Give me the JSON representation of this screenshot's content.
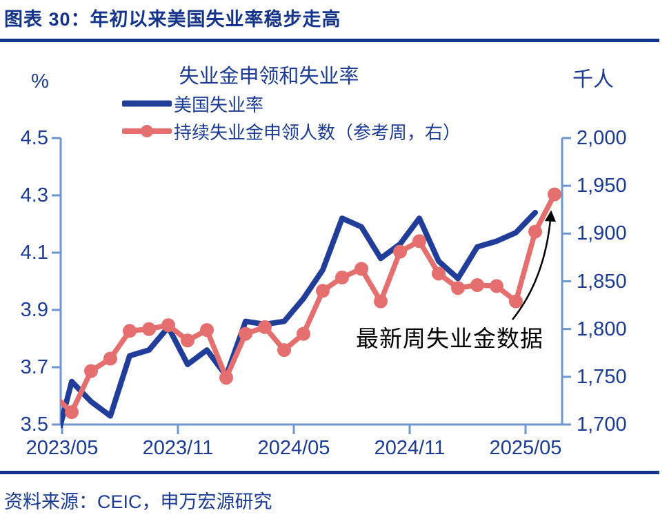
{
  "header": {
    "title": "图表 30：年初以来美国失业率稳步走高"
  },
  "footer": {
    "source": "资料来源：CEIC，申万宏源研究"
  },
  "colors": {
    "navy_text": "#1B3B94",
    "header_navy": "#14338A",
    "axis_line": "#6E96D2",
    "unemployment_line": "#203E99",
    "claims_line": "#E56E6E",
    "annotation": "#000000"
  },
  "chart_data": {
    "type": "line",
    "title": "失业金申领和失业率",
    "legend_position": "top-left",
    "grid": false,
    "x": [
      "2023/04",
      "2023/05",
      "2023/06",
      "2023/07",
      "2023/08",
      "2023/09",
      "2023/10",
      "2023/11",
      "2023/12",
      "2024/01",
      "2024/02",
      "2024/03",
      "2024/04",
      "2024/05",
      "2024/06",
      "2024/07",
      "2024/08",
      "2024/09",
      "2024/10",
      "2024/11",
      "2024/12",
      "2025/01",
      "2025/02",
      "2025/03",
      "2025/04",
      "2025/05",
      "2025/06"
    ],
    "x_ticks": [
      "2023/05",
      "2023/11",
      "2024/05",
      "2024/11",
      "2025/05"
    ],
    "left_axis": {
      "unit": "%",
      "range": [
        3.5,
        4.5
      ],
      "ticks": [
        "4.5",
        "4.3",
        "4.1",
        "3.9",
        "3.7",
        "3.5"
      ]
    },
    "right_axis": {
      "unit": "千人",
      "range": [
        1700,
        2000
      ],
      "ticks": [
        "2,000",
        "1,950",
        "1,900",
        "1,850",
        "1,800",
        "1,750",
        "1,700"
      ]
    },
    "series": [
      {
        "name": "美国失业率",
        "axis": "left",
        "color": "#203E99",
        "marker": false,
        "values": [
          3.39,
          3.65,
          3.58,
          3.53,
          3.74,
          3.76,
          3.84,
          3.71,
          3.76,
          3.67,
          3.86,
          3.85,
          3.86,
          3.94,
          4.04,
          4.22,
          4.19,
          4.08,
          4.13,
          4.22,
          4.07,
          4.01,
          4.12,
          4.14,
          4.17,
          4.24,
          null
        ]
      },
      {
        "name": "持续失业金申领人数（参考周，右）",
        "axis": "right",
        "color": "#E56E6E",
        "marker": true,
        "values": [
          1732,
          1713,
          1756,
          1769,
          1798,
          1800,
          1804,
          1788,
          1799,
          1749,
          1795,
          1802,
          1778,
          1795,
          1840,
          1854,
          1863,
          1829,
          1881,
          1892,
          1858,
          1843,
          1846,
          1845,
          1829,
          1902,
          1941
        ]
      }
    ],
    "annotation": {
      "text": "最新周失业金数据"
    }
  }
}
